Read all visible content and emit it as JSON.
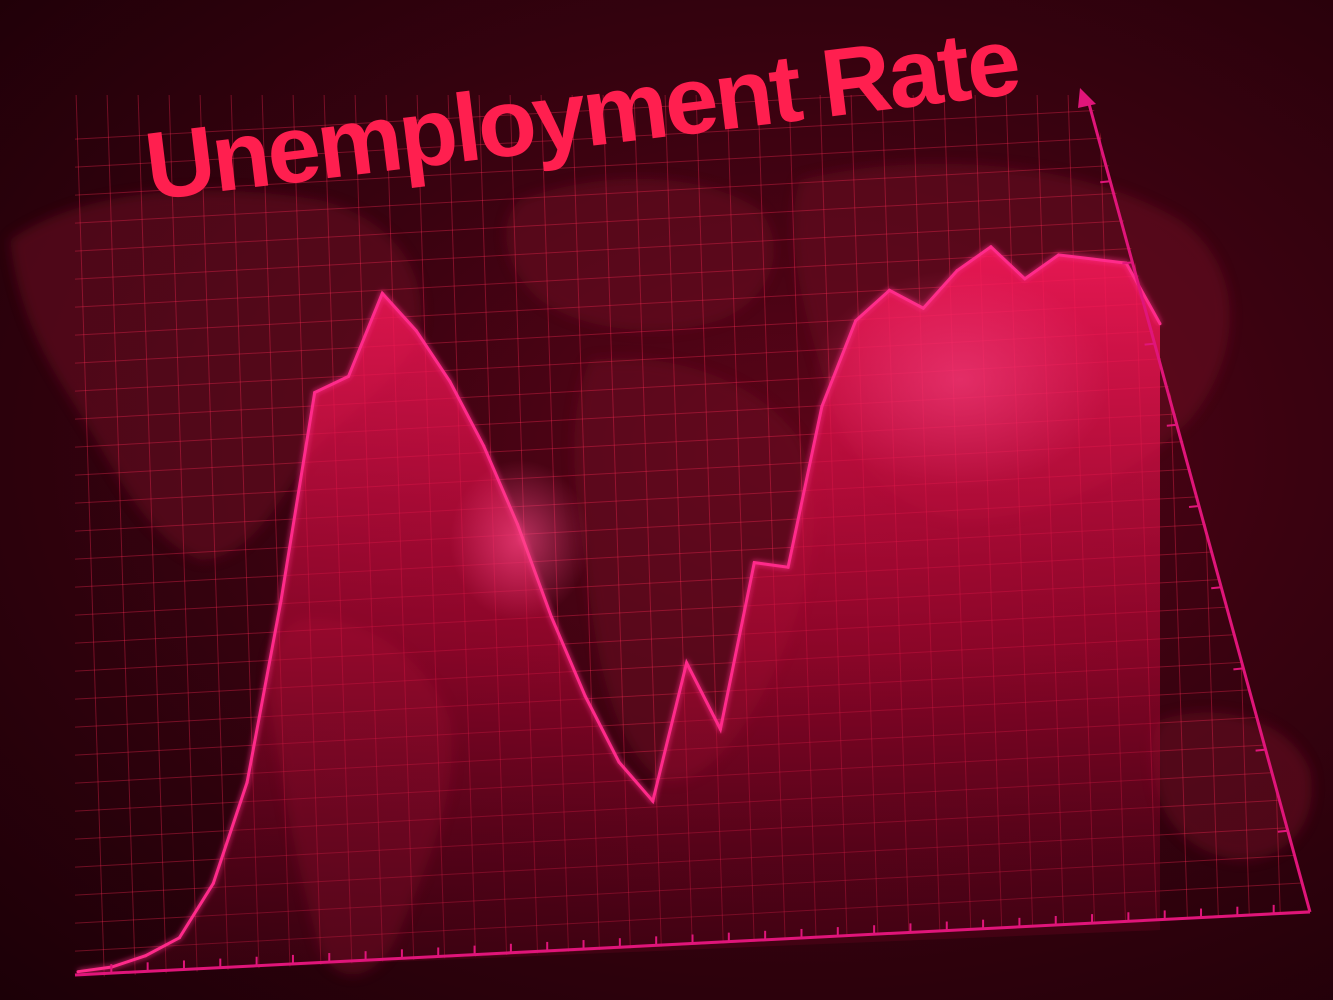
{
  "chart_data": {
    "type": "area",
    "title": "Unemployment Rate",
    "xlabel": "",
    "ylabel": "",
    "grid": true,
    "x": [
      0,
      1,
      2,
      3,
      4,
      5,
      6,
      7,
      8,
      9,
      10,
      11,
      12,
      13,
      14,
      15,
      16,
      17,
      18,
      19,
      20,
      21,
      22,
      23,
      24,
      25,
      26,
      27,
      28,
      29,
      30,
      31,
      32
    ],
    "values": [
      0.5,
      1.0,
      2.5,
      5.0,
      13.0,
      28.0,
      55.0,
      86.0,
      88.0,
      100.0,
      94.0,
      86.0,
      76.0,
      64.0,
      50.0,
      38.0,
      28.0,
      22.0,
      42.0,
      32.0,
      56.0,
      55.0,
      78.0,
      90.0,
      94.0,
      91.0,
      96.0,
      99.0,
      94.0,
      97.0,
      96.0,
      95.0,
      86.0
    ],
    "ylim": [
      0,
      100
    ],
    "colors": {
      "line": "#ff2a8a",
      "fill": "#ff1050",
      "title": "#ff1f4f",
      "axis": "#e0157a",
      "grid": "#ff2a55"
    }
  }
}
